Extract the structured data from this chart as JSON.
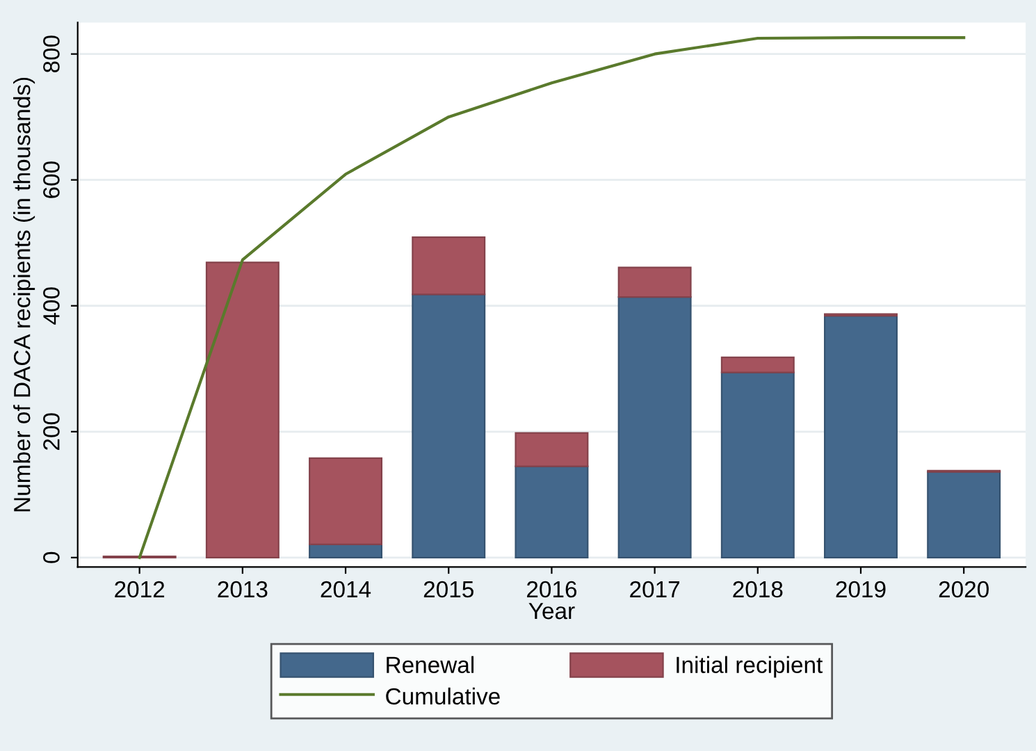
{
  "chart_data": {
    "type": "bar",
    "stacked": true,
    "xlabel": "Year",
    "ylabel": "Number of DACA recipients (in thousands)",
    "categories": [
      "2012",
      "2013",
      "2014",
      "2015",
      "2016",
      "2017",
      "2018",
      "2019",
      "2020"
    ],
    "series": [
      {
        "name": "Renewal",
        "color": "#44688c",
        "values": [
          0,
          0,
          21,
          418,
          145,
          414,
          294,
          384,
          136
        ]
      },
      {
        "name": "Initial recipient",
        "color": "#a5535e",
        "values": [
          2,
          469,
          137,
          91,
          53,
          47,
          24,
          3,
          2
        ]
      },
      {
        "name": "Cumulative",
        "type": "line",
        "color": "#5a7a2c",
        "values": [
          0,
          473,
          609,
          700,
          754,
          800,
          825,
          826,
          826
        ]
      }
    ],
    "ylim": [
      -15,
      850
    ],
    "yticks": [
      0,
      200,
      400,
      600,
      800
    ],
    "grid": "y",
    "legend": "bottom",
    "marker": "none",
    "line_style": "solid"
  }
}
